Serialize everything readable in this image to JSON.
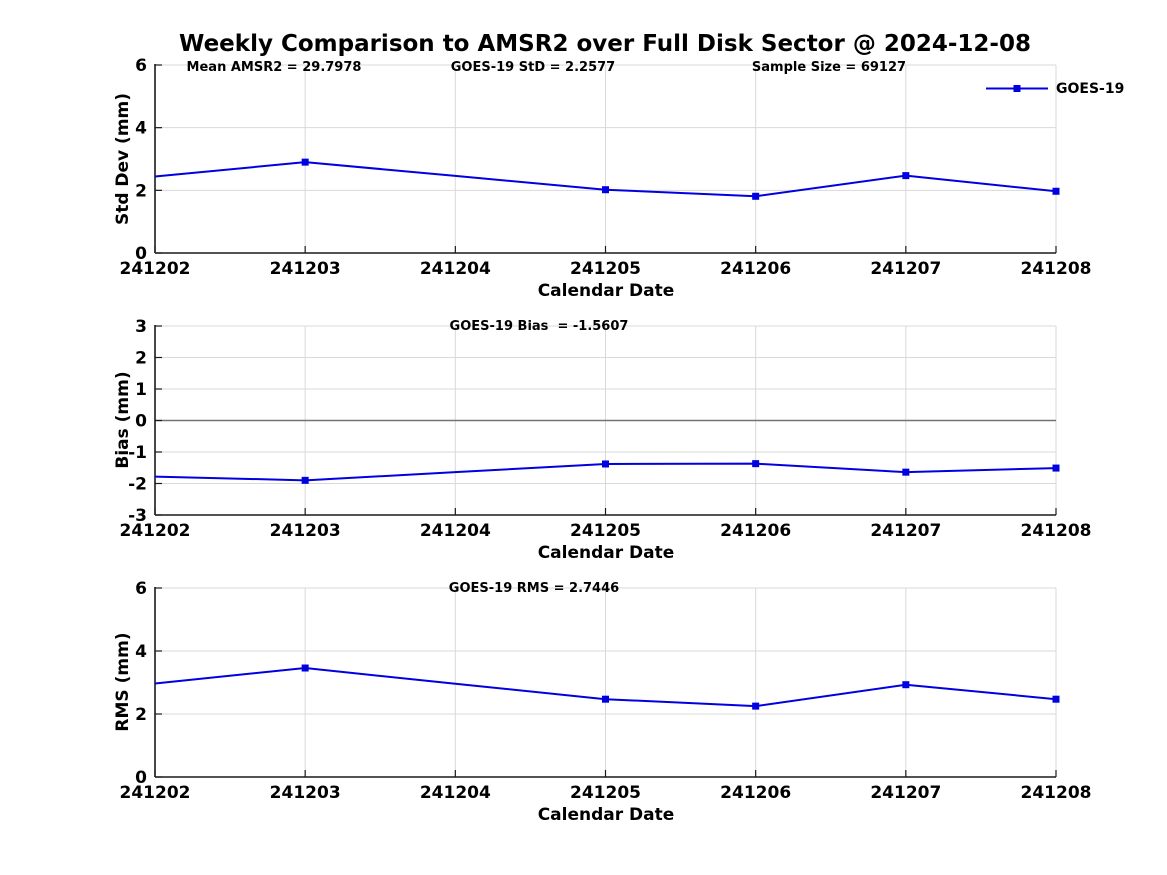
{
  "title": "Weekly Comparison to AMSR2 over Full Disk Sector @ 2024-12-08",
  "legend": {
    "label": "GOES-19"
  },
  "colors": {
    "series": "#0000E0",
    "grid": "#D9D9D9",
    "axis": "#1A1A1A",
    "zero_line": "#737373",
    "text": "#000000"
  },
  "chart_data": [
    {
      "type": "line",
      "ylabel": "Std Dev (mm)",
      "xlabel": "Calendar Date",
      "ylim": [
        0,
        6
      ],
      "yticks": [
        0,
        2,
        4,
        6
      ],
      "grid": true,
      "legend_position": "top-right",
      "categories": [
        "241202",
        "241203",
        "241204",
        "241205",
        "241206",
        "241207",
        "241208"
      ],
      "annotations": [
        "Mean AMSR2 = 29.7978",
        "GOES-19 StD = 2.2577",
        "Sample Size = 69127"
      ],
      "series": [
        {
          "name": "GOES-19",
          "values": [
            2.44,
            2.9,
            2.46,
            2.02,
            1.81,
            2.47,
            1.97
          ],
          "markers": [
            false,
            true,
            false,
            true,
            true,
            true,
            true
          ]
        }
      ]
    },
    {
      "type": "line",
      "ylabel": "Bias (mm)",
      "xlabel": "Calendar Date",
      "ylim": [
        -3,
        3
      ],
      "yticks": [
        -3,
        -2,
        -1,
        0,
        1,
        2,
        3
      ],
      "grid": true,
      "zero_line": true,
      "categories": [
        "241202",
        "241203",
        "241204",
        "241205",
        "241206",
        "241207",
        "241208"
      ],
      "annotations": [
        "GOES-19 Bias  = -1.5607"
      ],
      "series": [
        {
          "name": "GOES-19",
          "values": [
            -1.78,
            -1.9,
            -1.64,
            -1.38,
            -1.37,
            -1.64,
            -1.51
          ],
          "markers": [
            false,
            true,
            false,
            true,
            true,
            true,
            true
          ]
        }
      ]
    },
    {
      "type": "line",
      "ylabel": "RMS (mm)",
      "xlabel": "Calendar Date",
      "ylim": [
        0,
        6
      ],
      "yticks": [
        0,
        2,
        4,
        6
      ],
      "grid": true,
      "categories": [
        "241202",
        "241203",
        "241204",
        "241205",
        "241206",
        "241207",
        "241208"
      ],
      "annotations": [
        "GOES-19 RMS = 2.7446"
      ],
      "series": [
        {
          "name": "GOES-19",
          "values": [
            2.97,
            3.46,
            2.96,
            2.47,
            2.25,
            2.93,
            2.47
          ],
          "markers": [
            false,
            true,
            false,
            true,
            true,
            true,
            true
          ]
        }
      ]
    }
  ]
}
